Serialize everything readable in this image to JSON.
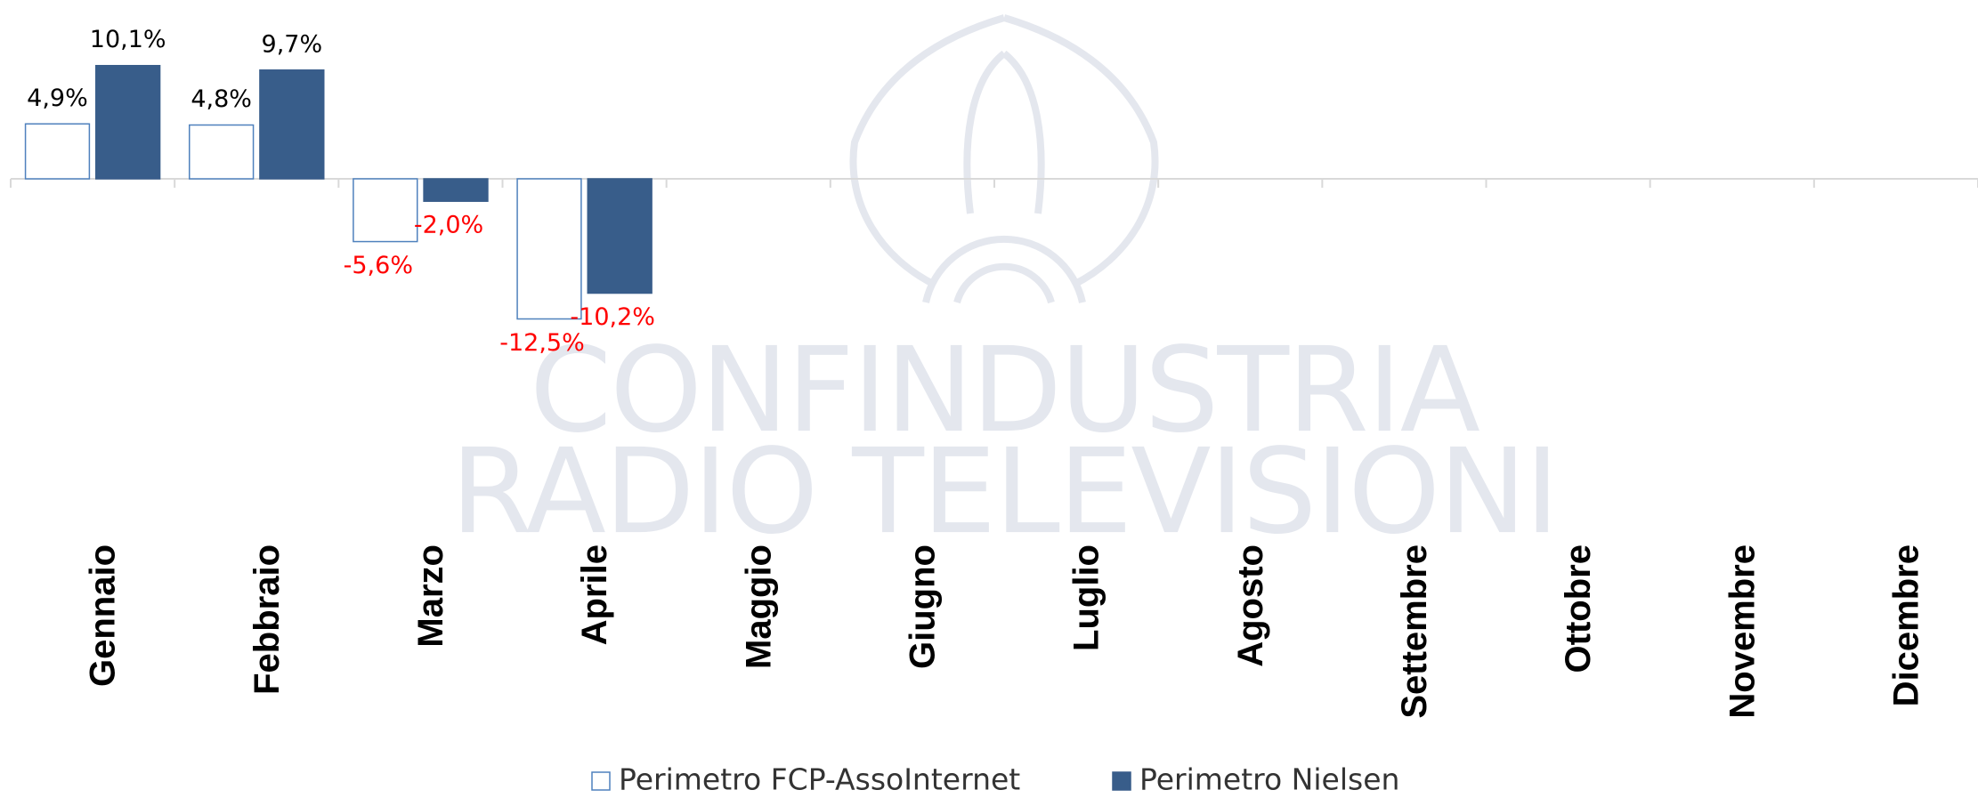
{
  "chart_data": {
    "type": "bar",
    "watermark": [
      "CONFINDUSTRIA",
      "RADIO TELEVISIONI"
    ],
    "categories": [
      "Gennaio",
      "Febbraio",
      "Marzo",
      "Aprile",
      "Maggio",
      "Giugno",
      "Luglio",
      "Agosto",
      "Settembre",
      "Ottobre",
      "Novembre",
      "Dicembre"
    ],
    "series": [
      {
        "name": "Perimetro FCP-AssoInternet",
        "color": "#ffffff",
        "stroke": "#4f81bd",
        "values": [
          4.9,
          4.8,
          -5.6,
          -12.5,
          null,
          null,
          null,
          null,
          null,
          null,
          null,
          null
        ],
        "value_labels": [
          "4,9%",
          "4,8%",
          "-5,6%",
          "-12,5%",
          null,
          null,
          null,
          null,
          null,
          null,
          null,
          null
        ]
      },
      {
        "name": "Perimetro Nielsen",
        "color": "#385d8a",
        "stroke": "#385d8a",
        "values": [
          10.1,
          9.7,
          -2.0,
          -10.2,
          null,
          null,
          null,
          null,
          null,
          null,
          null,
          null
        ],
        "value_labels": [
          "10,1%",
          "9,7%",
          "-2,0%",
          "-10,2%",
          null,
          null,
          null,
          null,
          null,
          null,
          null,
          null
        ]
      }
    ],
    "ylim": [
      -15,
      15
    ],
    "negative_label_color": "#ff0000",
    "positive_label_color": "#000000"
  }
}
